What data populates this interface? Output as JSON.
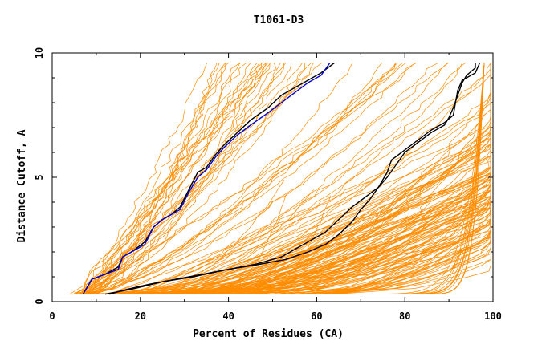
{
  "chart_data": {
    "type": "line",
    "title": "T1061-D3",
    "xlabel": "Percent of Residues (CA)",
    "ylabel": "Distance Cutoff, A",
    "xlim": [
      0,
      100
    ],
    "ylim": [
      0,
      10
    ],
    "x_ticks": [
      "0",
      "20",
      "40",
      "60",
      "80",
      "100"
    ],
    "y_ticks": [
      "0",
      "5",
      "10"
    ],
    "grid": false,
    "legend": "none",
    "colors": {
      "background": "#ffffff",
      "bundle": "#ff8c00",
      "highlight_a": "#000000",
      "highlight_b": "#0000cc",
      "axes": "#000000"
    },
    "series": [
      {
        "color": "#000000",
        "points": [
          [
            7,
            0.3
          ],
          [
            8,
            0.6
          ],
          [
            9,
            0.9
          ],
          [
            12,
            1.1
          ],
          [
            15,
            1.4
          ],
          [
            16,
            1.8
          ],
          [
            18,
            2.0
          ],
          [
            21,
            2.4
          ],
          [
            23,
            3.0
          ],
          [
            25,
            3.3
          ],
          [
            27,
            3.5
          ],
          [
            29,
            3.8
          ],
          [
            31,
            4.5
          ],
          [
            33,
            5.2
          ],
          [
            35,
            5.4
          ],
          [
            37,
            5.9
          ],
          [
            39,
            6.3
          ],
          [
            42,
            6.8
          ],
          [
            45,
            7.3
          ],
          [
            49,
            7.8
          ],
          [
            52,
            8.3
          ],
          [
            55,
            8.6
          ],
          [
            58,
            8.9
          ],
          [
            61,
            9.2
          ],
          [
            64,
            9.6
          ]
        ]
      },
      {
        "color": "#0000cc",
        "points": [
          [
            7,
            0.3
          ],
          [
            8,
            0.6
          ],
          [
            9,
            0.9
          ],
          [
            12,
            1.1
          ],
          [
            15,
            1.3
          ],
          [
            16,
            1.8
          ],
          [
            18,
            2.0
          ],
          [
            21,
            2.3
          ],
          [
            23,
            3.0
          ],
          [
            25,
            3.3
          ],
          [
            27,
            3.5
          ],
          [
            29,
            3.7
          ],
          [
            31,
            4.4
          ],
          [
            33,
            5.0
          ],
          [
            35,
            5.3
          ],
          [
            37,
            5.8
          ],
          [
            39,
            6.2
          ],
          [
            42,
            6.7
          ],
          [
            45,
            7.1
          ],
          [
            49,
            7.6
          ],
          [
            52,
            8.0
          ],
          [
            55,
            8.4
          ],
          [
            58,
            8.8
          ],
          [
            61,
            9.1
          ],
          [
            63,
            9.6
          ]
        ]
      },
      {
        "color": "#000000",
        "points": [
          [
            13,
            0.3
          ],
          [
            17,
            0.5
          ],
          [
            22,
            0.7
          ],
          [
            28,
            0.9
          ],
          [
            34,
            1.1
          ],
          [
            40,
            1.3
          ],
          [
            46,
            1.5
          ],
          [
            52,
            1.8
          ],
          [
            55,
            2.1
          ],
          [
            58,
            2.4
          ],
          [
            62,
            2.8
          ],
          [
            65,
            3.3
          ],
          [
            68,
            3.8
          ],
          [
            71,
            4.2
          ],
          [
            74,
            4.6
          ],
          [
            76,
            5.2
          ],
          [
            77,
            5.7
          ],
          [
            80,
            6.1
          ],
          [
            83,
            6.5
          ],
          [
            86,
            6.9
          ],
          [
            89,
            7.2
          ],
          [
            91,
            7.5
          ],
          [
            91.5,
            8.0
          ],
          [
            92,
            8.5
          ],
          [
            93,
            8.9
          ],
          [
            96,
            9.2
          ],
          [
            97,
            9.6
          ]
        ]
      },
      {
        "color": "#000000",
        "points": [
          [
            12,
            0.3
          ],
          [
            18,
            0.5
          ],
          [
            25,
            0.8
          ],
          [
            32,
            1.0
          ],
          [
            40,
            1.3
          ],
          [
            47,
            1.5
          ],
          [
            53,
            1.7
          ],
          [
            58,
            2.0
          ],
          [
            62,
            2.3
          ],
          [
            65,
            2.7
          ],
          [
            68,
            3.2
          ],
          [
            70,
            3.7
          ],
          [
            72,
            4.1
          ],
          [
            74,
            4.6
          ],
          [
            76,
            5.0
          ],
          [
            78,
            5.5
          ],
          [
            80,
            6.0
          ],
          [
            83,
            6.4
          ],
          [
            86,
            6.8
          ],
          [
            89,
            7.1
          ],
          [
            90,
            7.4
          ],
          [
            91,
            7.8
          ],
          [
            92,
            8.3
          ],
          [
            93,
            8.8
          ],
          [
            94,
            9.1
          ],
          [
            96,
            9.4
          ],
          [
            96,
            9.6
          ]
        ]
      }
    ]
  }
}
